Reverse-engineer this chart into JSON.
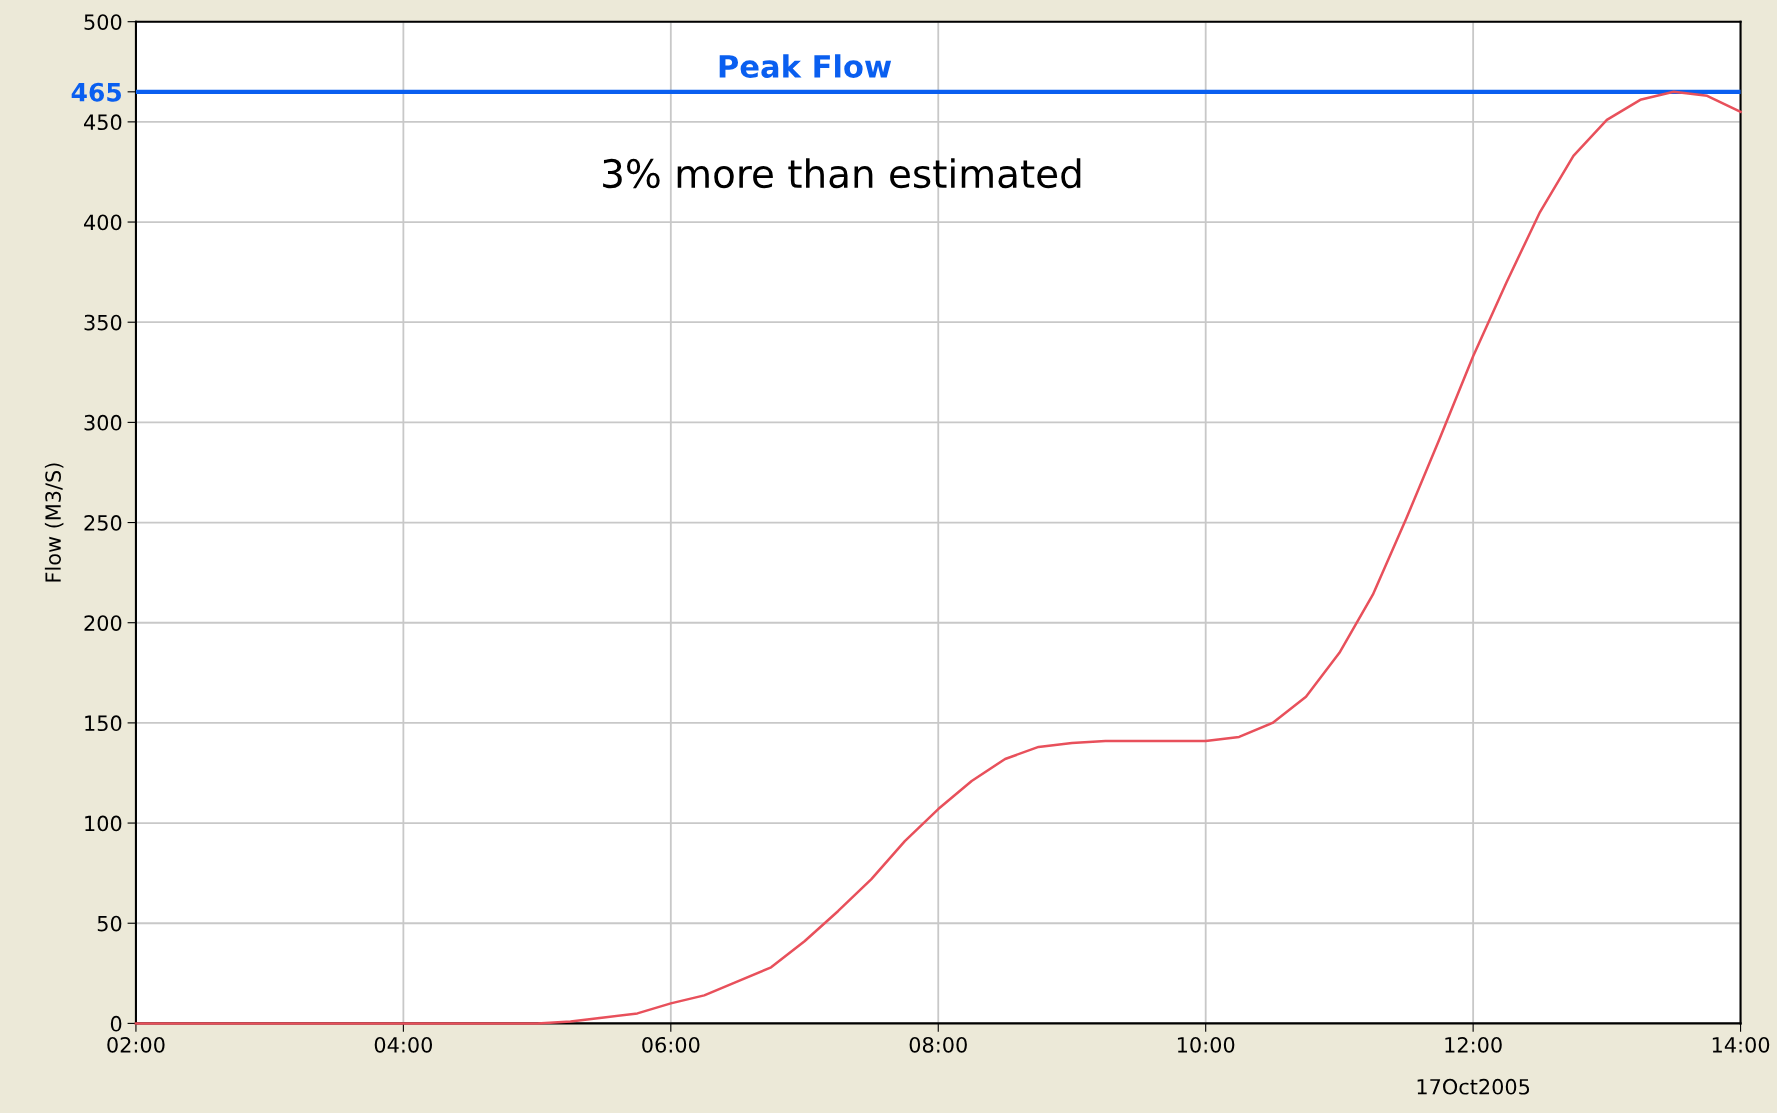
{
  "chart_data": {
    "type": "line",
    "ylabel": "Flow (M3/S)",
    "xlabel": "17Oct2005",
    "x": [
      2,
      3,
      4,
      5,
      5.25,
      5.5,
      5.75,
      6,
      6.25,
      6.5,
      6.75,
      7,
      7.25,
      7.5,
      7.75,
      8,
      8.25,
      8.5,
      8.75,
      9,
      9.25,
      10,
      10.25,
      10.5,
      10.75,
      11,
      11.25,
      11.5,
      11.75,
      12,
      12.25,
      12.5,
      12.75,
      13,
      13.25,
      13.5,
      13.75,
      14
    ],
    "series": [
      {
        "color": "#e8505b",
        "values": [
          0,
          0,
          0,
          0,
          1,
          3,
          5,
          10,
          14,
          21,
          28,
          41,
          56,
          72,
          91,
          107,
          121,
          132,
          138,
          140,
          141,
          141,
          143,
          150,
          163,
          185,
          214,
          252,
          292,
          333,
          370,
          405,
          433,
          451,
          461,
          465,
          463,
          455
        ]
      }
    ],
    "xlim": [
      2,
      14
    ],
    "xticks": [
      {
        "value": 2,
        "label": "02:00"
      },
      {
        "value": 4,
        "label": "04:00"
      },
      {
        "value": 6,
        "label": "06:00"
      },
      {
        "value": 8,
        "label": "08:00"
      },
      {
        "value": 10,
        "label": "10:00"
      },
      {
        "value": 12,
        "label": "12:00"
      },
      {
        "value": 14,
        "label": "14:00"
      }
    ],
    "ylim": [
      0,
      500
    ],
    "yticks": [
      0,
      50,
      100,
      150,
      200,
      250,
      300,
      350,
      400,
      450,
      465,
      500
    ],
    "ref_lines": [
      {
        "axis": "y",
        "value": 465,
        "label": "Peak Flow",
        "color": "#0a5ff0"
      }
    ],
    "annotations": [
      "3% more than estimated"
    ],
    "grid": true,
    "marker": "none",
    "line_style": "solid"
  }
}
